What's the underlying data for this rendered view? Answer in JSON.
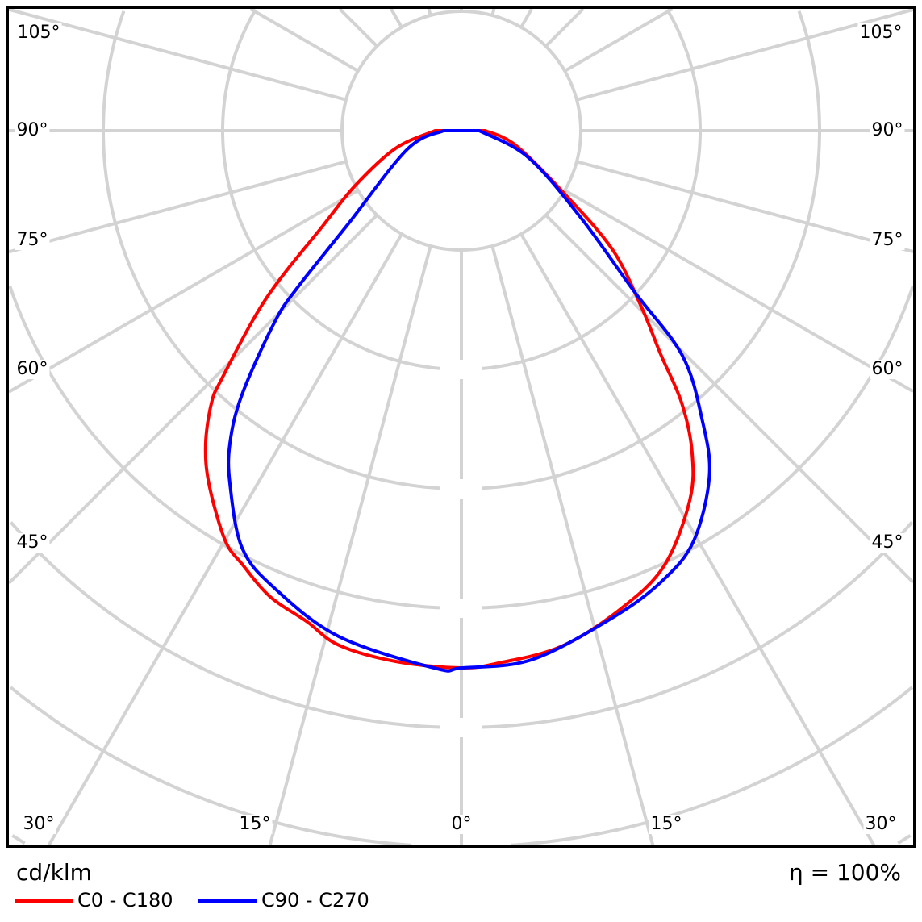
{
  "chart_data": {
    "type": "polar-line",
    "unit_label": "cd/klm",
    "efficiency_label": "η = 100%",
    "angle_labels_left": [
      "105°",
      "90°",
      "75°",
      "60°",
      "45°"
    ],
    "angle_labels_bottom": [
      "30°",
      "15°",
      "0°",
      "15°",
      "30°"
    ],
    "angle_labels_right": [
      "105°",
      "90°",
      "75°",
      "60°",
      "45°"
    ],
    "angle_step_deg": 15,
    "radial_tick_labels_shown": false,
    "grid": true,
    "grid_color": "#d3d3d3",
    "legend_position": "bottom-left",
    "series": [
      {
        "name": "C0 - C180",
        "color": "#ff0000",
        "points_gamma_r": [
          [
            -90,
            0.22
          ],
          [
            -75,
            0.57
          ],
          [
            -62.7,
            1.0
          ],
          [
            -55.5,
            1.41
          ],
          [
            -49.3,
            2.16
          ],
          [
            -44,
            2.89
          ],
          [
            -42.5,
            3.1
          ],
          [
            -39.2,
            3.39
          ],
          [
            -35.5,
            3.64
          ],
          [
            -30,
            3.96
          ],
          [
            -26.8,
            4.07
          ],
          [
            -22.3,
            4.22
          ],
          [
            -17.5,
            4.31
          ],
          [
            -13.4,
            4.43
          ],
          [
            -7,
            4.48
          ],
          [
            0,
            4.5
          ],
          [
            4,
            4.47
          ],
          [
            11,
            4.4
          ],
          [
            18.5,
            4.22
          ],
          [
            25,
            4.02
          ],
          [
            31.7,
            3.64
          ],
          [
            35.7,
            3.31
          ],
          [
            39,
            2.93
          ],
          [
            41.7,
            2.51
          ],
          [
            45.6,
            2.11
          ],
          [
            51.8,
            1.61
          ],
          [
            58.6,
            1.01
          ],
          [
            75,
            0.47
          ],
          [
            90,
            0.2
          ]
        ]
      },
      {
        "name": "C90 - C270",
        "color": "#0000ff",
        "points_gamma_r": [
          [
            -90,
            0.15
          ],
          [
            -71,
            0.48
          ],
          [
            -50.3,
            1.25
          ],
          [
            -46.3,
            1.89
          ],
          [
            -44.3,
            2.24
          ],
          [
            -39.7,
            2.88
          ],
          [
            -36.5,
            3.26
          ],
          [
            -33.2,
            3.54
          ],
          [
            -27.7,
            3.95
          ],
          [
            -22.2,
            4.14
          ],
          [
            -13.6,
            4.36
          ],
          [
            -2.7,
            4.51
          ],
          [
            0,
            4.5
          ],
          [
            7.6,
            4.47
          ],
          [
            17.3,
            4.27
          ],
          [
            24,
            4.13
          ],
          [
            29.5,
            3.95
          ],
          [
            35.7,
            3.56
          ],
          [
            39.8,
            3.15
          ],
          [
            44.5,
            2.64
          ],
          [
            47.1,
            1.97
          ],
          [
            53.9,
            1.24
          ],
          [
            68.3,
            0.6
          ],
          [
            90,
            0.15
          ]
        ]
      }
    ]
  }
}
